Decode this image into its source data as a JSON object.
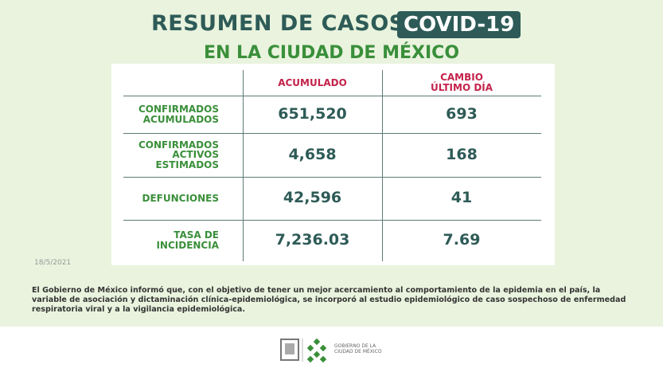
{
  "header": {
    "title": "RESUMEN DE CASOS",
    "badge": "COVID-19",
    "subtitle": "EN LA CIUDAD DE MÉXICO"
  },
  "table": {
    "columns": [
      "ACUMULADO",
      "CAMBIO\nÚLTIMO DÍA"
    ],
    "rows": [
      [
        "CONFIRMADOS\nACUMULADOS",
        "651,520",
        "693"
      ],
      [
        "CONFIRMADOS\nACTIVOS\nESTIMADOS",
        "4,658",
        "168"
      ],
      [
        "DEFUNCIONES",
        "42,596",
        "41"
      ],
      [
        "TASA DE\nINCIDENCIA",
        "7,236.03",
        "7.69"
      ]
    ]
  },
  "date": "18/5/2021",
  "note": "El Gobierno de México informó que, con el objetivo de tener un mejor acercamiento al comportamiento de la epidemia en el país, la variable de asociación y dictaminación clínica-epidemiológica, se incorporó al estudio epidemiológico de caso sospechoso de enfermedad respiratoria viral y a la vigilancia epidemiológica.",
  "footer": {
    "logo_text": "GOBIERNO DE LA\nCIUDAD DE MÉXICO"
  }
}
